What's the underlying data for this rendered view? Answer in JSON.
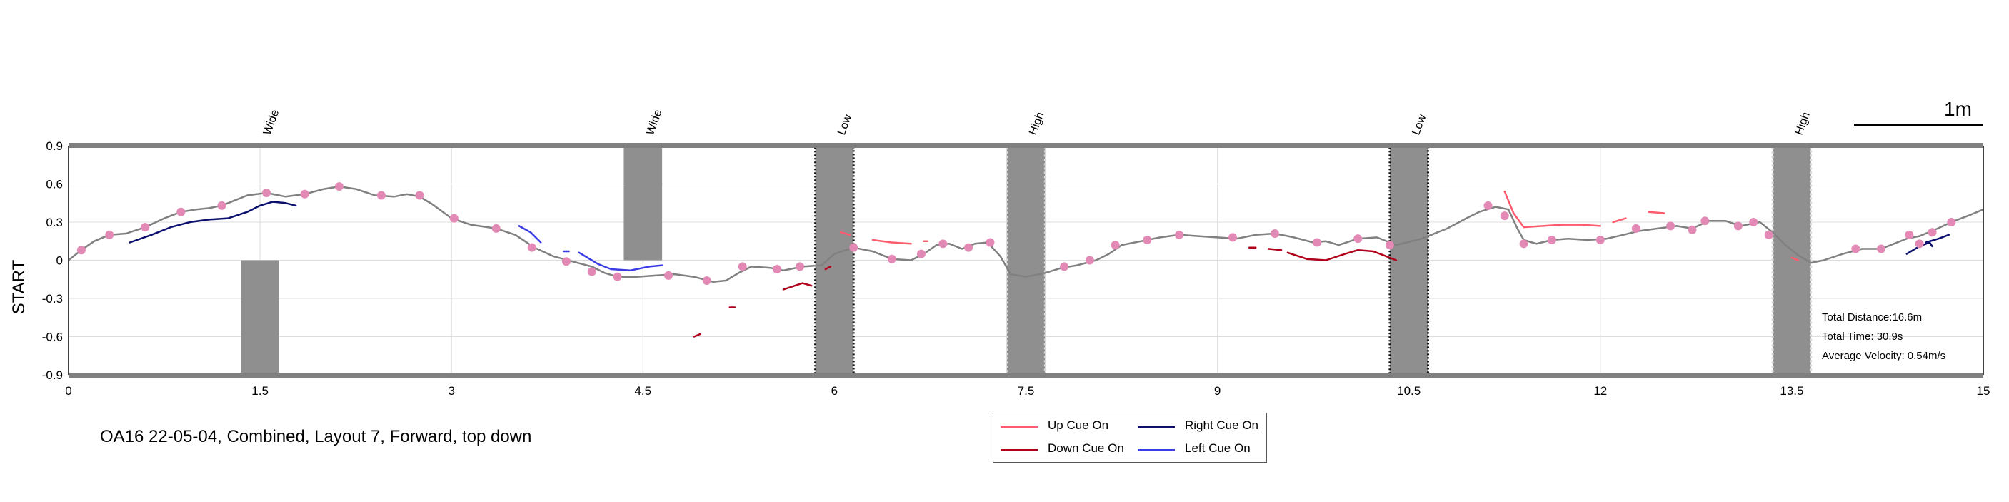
{
  "chart_data": {
    "type": "line",
    "ylabel": "START",
    "xlim": [
      0,
      15
    ],
    "ylim": [
      -0.9,
      0.9
    ],
    "x_ticks": [
      "0",
      "1.5",
      "3",
      "4.5",
      "6",
      "7.5",
      "9",
      "10.5",
      "12",
      "13.5",
      "15"
    ],
    "y_ticks": [
      "0.9",
      "0.6",
      "0.3",
      "0",
      "-0.3",
      "-0.6",
      "-0.9"
    ],
    "grid": true,
    "obstacles": [
      {
        "label": "Wide",
        "x_range": [
          1.35,
          1.65
        ],
        "y_range": [
          -0.9,
          0.0
        ],
        "label_x": 1.55,
        "style": "solid"
      },
      {
        "label": "Wide",
        "x_range": [
          4.35,
          4.65
        ],
        "y_range": [
          0.0,
          0.9
        ],
        "label_x": 4.55,
        "style": "solid"
      },
      {
        "label": "Low",
        "x_range": [
          5.85,
          6.15
        ],
        "y_range": [
          -0.9,
          0.9
        ],
        "label_x": 6.05,
        "style": "dotted-dark"
      },
      {
        "label": "High",
        "x_range": [
          7.35,
          7.65
        ],
        "y_range": [
          -0.9,
          0.9
        ],
        "label_x": 7.55,
        "style": "dotted-light"
      },
      {
        "label": "Low",
        "x_range": [
          10.35,
          10.65
        ],
        "y_range": [
          -0.9,
          0.9
        ],
        "label_x": 10.55,
        "style": "dotted-dark"
      },
      {
        "label": "High",
        "x_range": [
          13.35,
          13.65
        ],
        "y_range": [
          -0.9,
          0.9
        ],
        "label_x": 13.55,
        "style": "dotted-light"
      }
    ],
    "series": [
      {
        "name": "",
        "color": "#808080",
        "points": [
          [
            0.0,
            0.0
          ],
          [
            0.1,
            0.08
          ],
          [
            0.2,
            0.15
          ],
          [
            0.32,
            0.2
          ],
          [
            0.45,
            0.21
          ],
          [
            0.6,
            0.26
          ],
          [
            0.75,
            0.33
          ],
          [
            0.88,
            0.38
          ],
          [
            1.0,
            0.4
          ],
          [
            1.1,
            0.41
          ],
          [
            1.2,
            0.43
          ],
          [
            1.3,
            0.47
          ],
          [
            1.4,
            0.51
          ],
          [
            1.55,
            0.53
          ],
          [
            1.7,
            0.5
          ],
          [
            1.85,
            0.52
          ],
          [
            2.0,
            0.56
          ],
          [
            2.12,
            0.58
          ],
          [
            2.25,
            0.56
          ],
          [
            2.4,
            0.51
          ],
          [
            2.55,
            0.5
          ],
          [
            2.65,
            0.52
          ],
          [
            2.75,
            0.5
          ],
          [
            2.85,
            0.44
          ],
          [
            3.0,
            0.33
          ],
          [
            3.15,
            0.28
          ],
          [
            3.35,
            0.25
          ],
          [
            3.5,
            0.2
          ],
          [
            3.65,
            0.1
          ],
          [
            3.8,
            0.03
          ],
          [
            3.95,
            -0.01
          ],
          [
            4.1,
            -0.05
          ],
          [
            4.2,
            -0.1
          ],
          [
            4.3,
            -0.13
          ],
          [
            4.45,
            -0.13
          ],
          [
            4.6,
            -0.12
          ],
          [
            4.75,
            -0.11
          ],
          [
            4.9,
            -0.13
          ],
          [
            5.05,
            -0.17
          ],
          [
            5.15,
            -0.16
          ],
          [
            5.25,
            -0.1
          ],
          [
            5.35,
            -0.05
          ],
          [
            5.5,
            -0.06
          ],
          [
            5.6,
            -0.08
          ],
          [
            5.75,
            -0.05
          ],
          [
            5.9,
            -0.04
          ],
          [
            6.0,
            0.05
          ],
          [
            6.15,
            0.1
          ],
          [
            6.3,
            0.07
          ],
          [
            6.45,
            0.01
          ],
          [
            6.6,
            0.0
          ],
          [
            6.7,
            0.05
          ],
          [
            6.8,
            0.12
          ],
          [
            6.9,
            0.13
          ],
          [
            7.0,
            0.09
          ],
          [
            7.1,
            0.13
          ],
          [
            7.2,
            0.14
          ],
          [
            7.3,
            0.03
          ],
          [
            7.38,
            -0.11
          ],
          [
            7.5,
            -0.13
          ],
          [
            7.65,
            -0.1
          ],
          [
            7.78,
            -0.06
          ],
          [
            7.9,
            -0.04
          ],
          [
            8.05,
            0.0
          ],
          [
            8.15,
            0.05
          ],
          [
            8.25,
            0.12
          ],
          [
            8.4,
            0.15
          ],
          [
            8.55,
            0.18
          ],
          [
            8.7,
            0.2
          ],
          [
            8.85,
            0.19
          ],
          [
            9.0,
            0.18
          ],
          [
            9.15,
            0.17
          ],
          [
            9.3,
            0.2
          ],
          [
            9.45,
            0.21
          ],
          [
            9.6,
            0.18
          ],
          [
            9.75,
            0.14
          ],
          [
            9.85,
            0.15
          ],
          [
            9.95,
            0.12
          ],
          [
            10.1,
            0.17
          ],
          [
            10.25,
            0.18
          ],
          [
            10.4,
            0.12
          ],
          [
            10.6,
            0.17
          ],
          [
            10.8,
            0.25
          ],
          [
            10.95,
            0.33
          ],
          [
            11.05,
            0.38
          ],
          [
            11.18,
            0.42
          ],
          [
            11.28,
            0.4
          ],
          [
            11.35,
            0.25
          ],
          [
            11.4,
            0.16
          ],
          [
            11.5,
            0.13
          ],
          [
            11.62,
            0.16
          ],
          [
            11.75,
            0.17
          ],
          [
            11.9,
            0.16
          ],
          [
            12.05,
            0.17
          ],
          [
            12.18,
            0.2
          ],
          [
            12.3,
            0.23
          ],
          [
            12.45,
            0.25
          ],
          [
            12.6,
            0.27
          ],
          [
            12.72,
            0.25
          ],
          [
            12.85,
            0.31
          ],
          [
            12.98,
            0.31
          ],
          [
            13.1,
            0.27
          ],
          [
            13.25,
            0.3
          ],
          [
            13.35,
            0.22
          ],
          [
            13.45,
            0.12
          ],
          [
            13.55,
            0.04
          ],
          [
            13.65,
            -0.02
          ],
          [
            13.75,
            0.0
          ],
          [
            13.9,
            0.05
          ],
          [
            14.05,
            0.09
          ],
          [
            14.2,
            0.09
          ],
          [
            14.3,
            0.13
          ],
          [
            14.4,
            0.17
          ],
          [
            14.5,
            0.19
          ],
          [
            14.62,
            0.24
          ],
          [
            14.75,
            0.3
          ],
          [
            14.88,
            0.35
          ],
          [
            15.0,
            0.4
          ]
        ]
      },
      {
        "name": "Right Cue On",
        "color": "#0b0f6e",
        "segments": [
          [
            [
              0.48,
              0.14
            ],
            [
              0.65,
              0.2
            ],
            [
              0.8,
              0.26
            ],
            [
              0.95,
              0.3
            ],
            [
              1.1,
              0.32
            ],
            [
              1.25,
              0.33
            ],
            [
              1.4,
              0.38
            ],
            [
              1.5,
              0.43
            ],
            [
              1.6,
              0.46
            ],
            [
              1.7,
              0.45
            ],
            [
              1.78,
              0.43
            ]
          ],
          [
            [
              14.4,
              0.05
            ],
            [
              14.5,
              0.11
            ],
            [
              14.58,
              0.14
            ],
            [
              14.6,
              0.11
            ]
          ],
          [
            [
              14.55,
              0.14
            ],
            [
              14.65,
              0.17
            ],
            [
              14.73,
              0.2
            ]
          ]
        ]
      },
      {
        "name": "Left Cue On",
        "color": "#3b3ce6",
        "segments": [
          [
            [
              3.53,
              0.27
            ],
            [
              3.62,
              0.22
            ],
            [
              3.7,
              0.14
            ]
          ],
          [
            [
              3.88,
              0.07
            ],
            [
              3.92,
              0.07
            ]
          ],
          [
            [
              4.0,
              0.06
            ],
            [
              4.15,
              -0.03
            ],
            [
              4.25,
              -0.07
            ],
            [
              4.4,
              -0.08
            ],
            [
              4.55,
              -0.05
            ],
            [
              4.65,
              -0.04
            ]
          ]
        ]
      },
      {
        "name": "Up Cue On",
        "color": "#ff5a6e",
        "segments": [
          [
            [
              6.05,
              0.22
            ],
            [
              6.12,
              0.2
            ]
          ],
          [
            [
              6.3,
              0.16
            ],
            [
              6.45,
              0.14
            ],
            [
              6.6,
              0.13
            ]
          ],
          [
            [
              6.7,
              0.15
            ],
            [
              6.73,
              0.15
            ]
          ],
          [
            [
              11.25,
              0.54
            ],
            [
              11.32,
              0.37
            ],
            [
              11.4,
              0.26
            ],
            [
              11.55,
              0.27
            ],
            [
              11.7,
              0.28
            ],
            [
              11.85,
              0.28
            ],
            [
              12.0,
              0.27
            ]
          ],
          [
            [
              12.1,
              0.3
            ],
            [
              12.2,
              0.33
            ]
          ],
          [
            [
              12.38,
              0.38
            ],
            [
              12.5,
              0.37
            ]
          ],
          [
            [
              13.5,
              0.02
            ],
            [
              13.55,
              0.0
            ]
          ]
        ]
      },
      {
        "name": "Down Cue On",
        "color": "#b0001a",
        "segments": [
          [
            [
              4.9,
              -0.6
            ],
            [
              4.95,
              -0.58
            ]
          ],
          [
            [
              5.18,
              -0.37
            ],
            [
              5.22,
              -0.37
            ]
          ],
          [
            [
              5.6,
              -0.23
            ],
            [
              5.75,
              -0.18
            ],
            [
              5.82,
              -0.2
            ]
          ],
          [
            [
              5.93,
              -0.07
            ],
            [
              5.97,
              -0.05
            ]
          ],
          [
            [
              9.25,
              0.1
            ],
            [
              9.3,
              0.1
            ]
          ],
          [
            [
              9.4,
              0.09
            ],
            [
              9.5,
              0.08
            ]
          ],
          [
            [
              9.55,
              0.06
            ],
            [
              9.7,
              0.01
            ],
            [
              9.85,
              0.0
            ],
            [
              10.0,
              0.05
            ],
            [
              10.1,
              0.08
            ],
            [
              10.22,
              0.07
            ],
            [
              10.3,
              0.04
            ],
            [
              10.4,
              0.0
            ]
          ]
        ]
      }
    ],
    "markers": {
      "color": "#e28ab5",
      "points": [
        [
          0.1,
          0.08
        ],
        [
          0.32,
          0.2
        ],
        [
          0.6,
          0.26
        ],
        [
          0.88,
          0.38
        ],
        [
          1.2,
          0.43
        ],
        [
          1.55,
          0.53
        ],
        [
          1.85,
          0.52
        ],
        [
          2.12,
          0.58
        ],
        [
          2.45,
          0.51
        ],
        [
          2.75,
          0.51
        ],
        [
          3.02,
          0.33
        ],
        [
          3.35,
          0.25
        ],
        [
          3.63,
          0.1
        ],
        [
          3.9,
          -0.01
        ],
        [
          4.1,
          -0.09
        ],
        [
          4.3,
          -0.13
        ],
        [
          4.7,
          -0.12
        ],
        [
          5.0,
          -0.16
        ],
        [
          5.28,
          -0.05
        ],
        [
          5.55,
          -0.07
        ],
        [
          5.73,
          -0.05
        ],
        [
          6.15,
          0.1
        ],
        [
          6.45,
          0.01
        ],
        [
          6.68,
          0.05
        ],
        [
          6.85,
          0.13
        ],
        [
          7.05,
          0.1
        ],
        [
          7.22,
          0.14
        ],
        [
          7.8,
          -0.05
        ],
        [
          8.0,
          0.0
        ],
        [
          8.2,
          0.12
        ],
        [
          8.45,
          0.16
        ],
        [
          8.7,
          0.2
        ],
        [
          9.12,
          0.18
        ],
        [
          9.45,
          0.21
        ],
        [
          9.78,
          0.14
        ],
        [
          10.1,
          0.17
        ],
        [
          10.35,
          0.12
        ],
        [
          11.12,
          0.43
        ],
        [
          11.25,
          0.35
        ],
        [
          11.4,
          0.13
        ],
        [
          11.62,
          0.16
        ],
        [
          12.0,
          0.16
        ],
        [
          12.28,
          0.25
        ],
        [
          12.55,
          0.27
        ],
        [
          12.72,
          0.24
        ],
        [
          12.82,
          0.31
        ],
        [
          13.08,
          0.27
        ],
        [
          13.2,
          0.3
        ],
        [
          13.32,
          0.2
        ],
        [
          14.0,
          0.09
        ],
        [
          14.2,
          0.09
        ],
        [
          14.42,
          0.2
        ],
        [
          14.5,
          0.13
        ],
        [
          14.6,
          0.22
        ],
        [
          14.75,
          0.3
        ]
      ]
    },
    "scale_bar": {
      "label": "1m"
    },
    "stats": [
      "Total Distance:16.6m",
      "Total Time: 30.9s",
      "Average Velocity: 0.54m/s"
    ],
    "legend": [
      {
        "label": "Up Cue On",
        "color": "#ff5a6e"
      },
      {
        "label": "Right Cue On",
        "color": "#0b0f6e"
      },
      {
        "label": "Down Cue On",
        "color": "#b0001a"
      },
      {
        "label": "Left Cue On",
        "color": "#3b3ce6"
      }
    ],
    "caption": "OA16 22-05-04, Combined, Layout 7, Forward, top down"
  }
}
